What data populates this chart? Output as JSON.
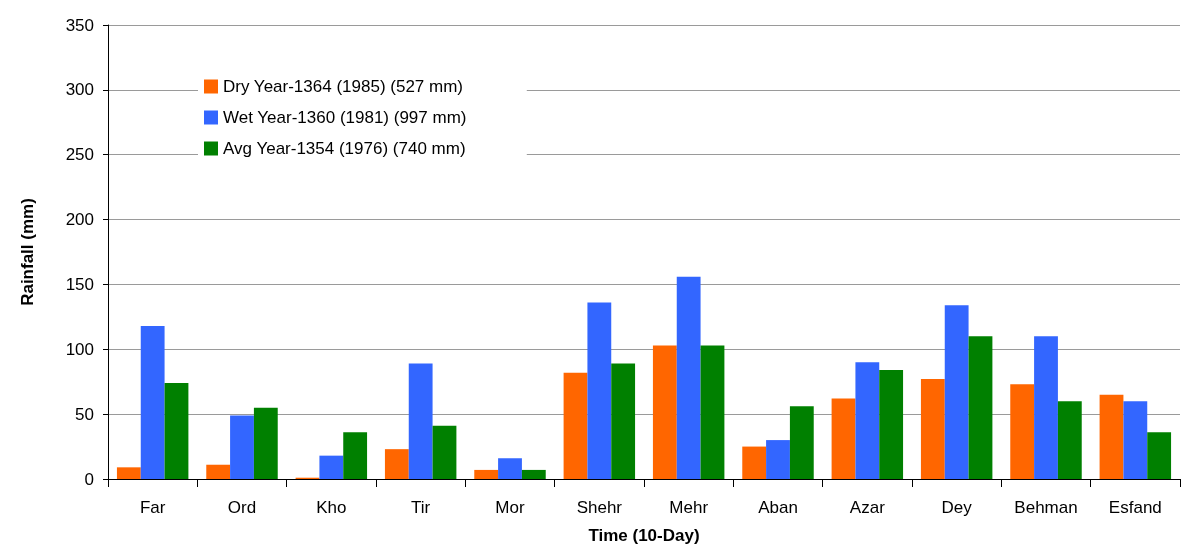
{
  "chart_data": {
    "type": "bar",
    "xlabel": "Time (10-Day)",
    "ylabel": "Rainfall (mm)",
    "categories": [
      "Far",
      "Ord",
      "Kho",
      "Tir",
      "Mor",
      "Shehr",
      "Mehr",
      "Aban",
      "Azar",
      "Dey",
      "Behman",
      "Esfand"
    ],
    "series": [
      {
        "name": "Dry Year-1364 (1985) (527 mm)",
        "color": "#ff6600",
        "values": [
          9,
          11,
          1,
          23,
          7,
          82,
          103,
          25,
          62,
          77,
          73,
          65
        ]
      },
      {
        "name": "Wet Year-1360 (1981) (997 mm)",
        "color": "#3366ff",
        "values": [
          118,
          49,
          18,
          89,
          16,
          136,
          156,
          30,
          90,
          134,
          110,
          60
        ]
      },
      {
        "name": "Avg Year-1354 (1976) (740 mm)",
        "color": "#008000",
        "values": [
          74,
          55,
          36,
          41,
          7,
          89,
          103,
          56,
          84,
          110,
          60,
          36
        ]
      }
    ],
    "ylim": [
      0,
      350
    ],
    "yticks": [
      0,
      50,
      100,
      150,
      200,
      250,
      300,
      350
    ],
    "grid": "y",
    "legend": "top left"
  }
}
